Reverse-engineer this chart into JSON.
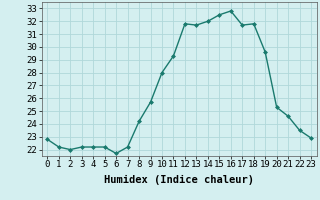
{
  "x": [
    0,
    1,
    2,
    3,
    4,
    5,
    6,
    7,
    8,
    9,
    10,
    11,
    12,
    13,
    14,
    15,
    16,
    17,
    18,
    19,
    20,
    21,
    22,
    23
  ],
  "y": [
    22.8,
    22.2,
    22.0,
    22.2,
    22.2,
    22.2,
    21.7,
    22.2,
    24.2,
    25.7,
    28.0,
    29.3,
    31.8,
    31.7,
    32.0,
    32.5,
    32.8,
    31.7,
    31.8,
    29.6,
    25.3,
    24.6,
    23.5,
    22.9
  ],
  "line_color": "#1a7a6e",
  "marker": "D",
  "marker_size": 2.0,
  "bg_color": "#d4eff0",
  "grid_color": "#b0d8da",
  "xlabel": "Humidex (Indice chaleur)",
  "ylim": [
    21.5,
    33.5
  ],
  "xlim": [
    -0.5,
    23.5
  ],
  "yticks": [
    22,
    23,
    24,
    25,
    26,
    27,
    28,
    29,
    30,
    31,
    32,
    33
  ],
  "xticks": [
    0,
    1,
    2,
    3,
    4,
    5,
    6,
    7,
    8,
    9,
    10,
    11,
    12,
    13,
    14,
    15,
    16,
    17,
    18,
    19,
    20,
    21,
    22,
    23
  ],
  "tick_label_fontsize": 6.5,
  "xlabel_fontsize": 7.5,
  "linewidth": 1.0
}
